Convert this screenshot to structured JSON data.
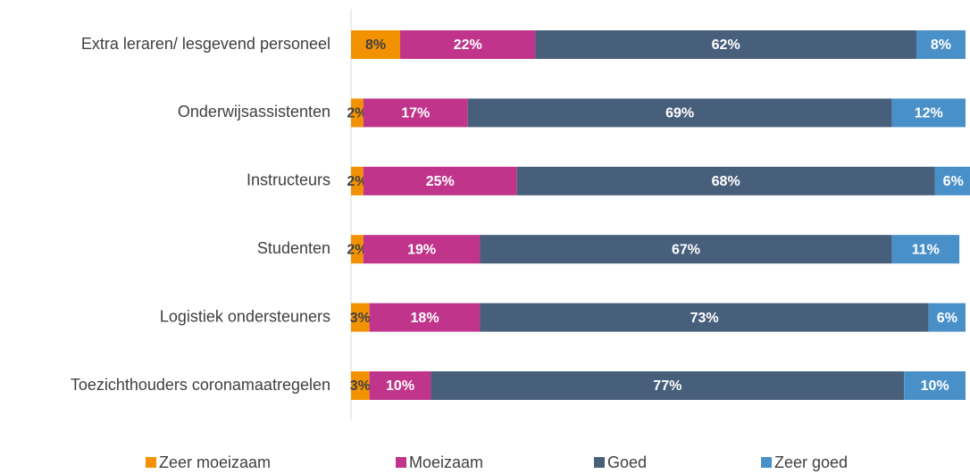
{
  "chart_data": {
    "type": "stacked_barh",
    "categories": [
      "Extra leraren/ lesgevend personeel",
      "Onderwijsassistenten",
      "Instructeurs",
      "Studenten",
      "Logistiek ondersteuners",
      "Toezichthouders coronamaatregelen"
    ],
    "series": [
      {
        "name": "Zeer moeizaam",
        "color": "#f39200",
        "values": [
          8,
          2,
          2,
          2,
          3,
          3
        ],
        "value_labels": [
          "8%",
          "2%",
          "2%",
          "2%",
          "3%",
          "3%"
        ]
      },
      {
        "name": "Moeizaam",
        "color": "#c0358b",
        "values": [
          22,
          17,
          25,
          19,
          18,
          10
        ],
        "value_labels": [
          "22%",
          "17%",
          "25%",
          "19%",
          "18%",
          "10%"
        ]
      },
      {
        "name": "Goed",
        "color": "#475f7b",
        "values": [
          62,
          69,
          68,
          67,
          73,
          77
        ],
        "value_labels": [
          "62%",
          "69%",
          "68%",
          "67%",
          "73%",
          "77%"
        ]
      },
      {
        "name": "Zeer goed",
        "color": "#4a90c8",
        "values": [
          8,
          12,
          6,
          11,
          6,
          10
        ],
        "value_labels": [
          "8%",
          "12%",
          "6%",
          "11%",
          "6%",
          "10%"
        ]
      }
    ],
    "legend": "bottom"
  }
}
